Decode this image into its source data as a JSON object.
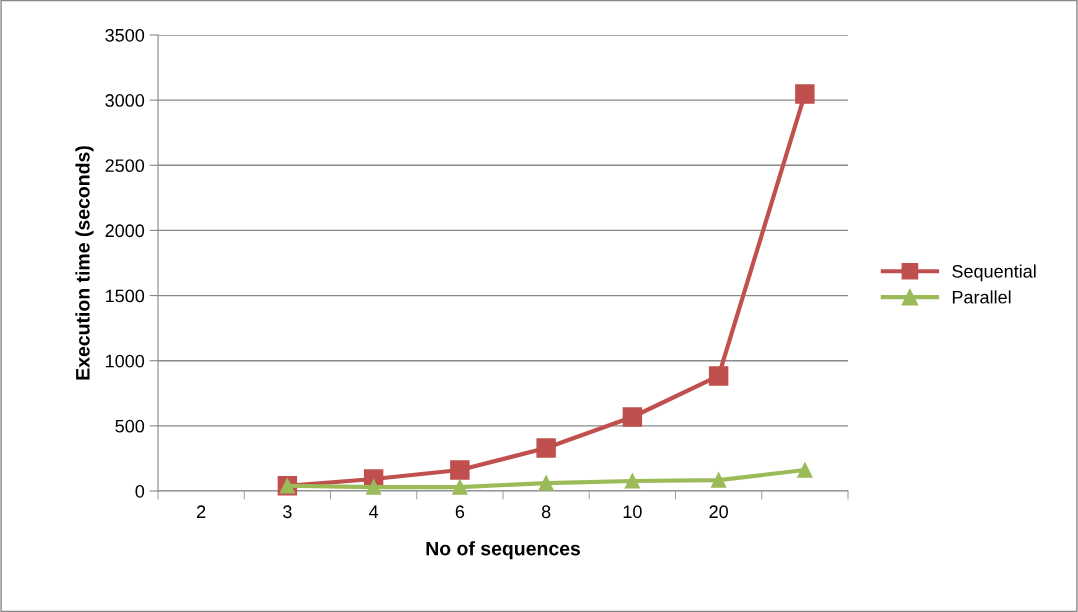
{
  "chart_data": {
    "type": "line",
    "xlabel": "No of sequences",
    "ylabel": "Execution time (seconds)",
    "categories": [
      "2",
      "3",
      "4",
      "6",
      "8",
      "10",
      "20",
      null
    ],
    "series": [
      {
        "name": "Sequential",
        "color": "#c0504d",
        "marker": "square",
        "values": [
          null,
          40,
          92,
          161,
          330,
          568,
          883,
          3047
        ]
      },
      {
        "name": "Parallel",
        "color": "#9bbb59",
        "marker": "triangle",
        "values": [
          null,
          40,
          30,
          30,
          61,
          77,
          84,
          161
        ]
      }
    ],
    "ylim": [
      0,
      3500
    ],
    "yticks": [
      0,
      500,
      1000,
      1500,
      2000,
      2500,
      3000,
      3500
    ],
    "grid": "y",
    "legend": "right",
    "line_style": "solid"
  }
}
